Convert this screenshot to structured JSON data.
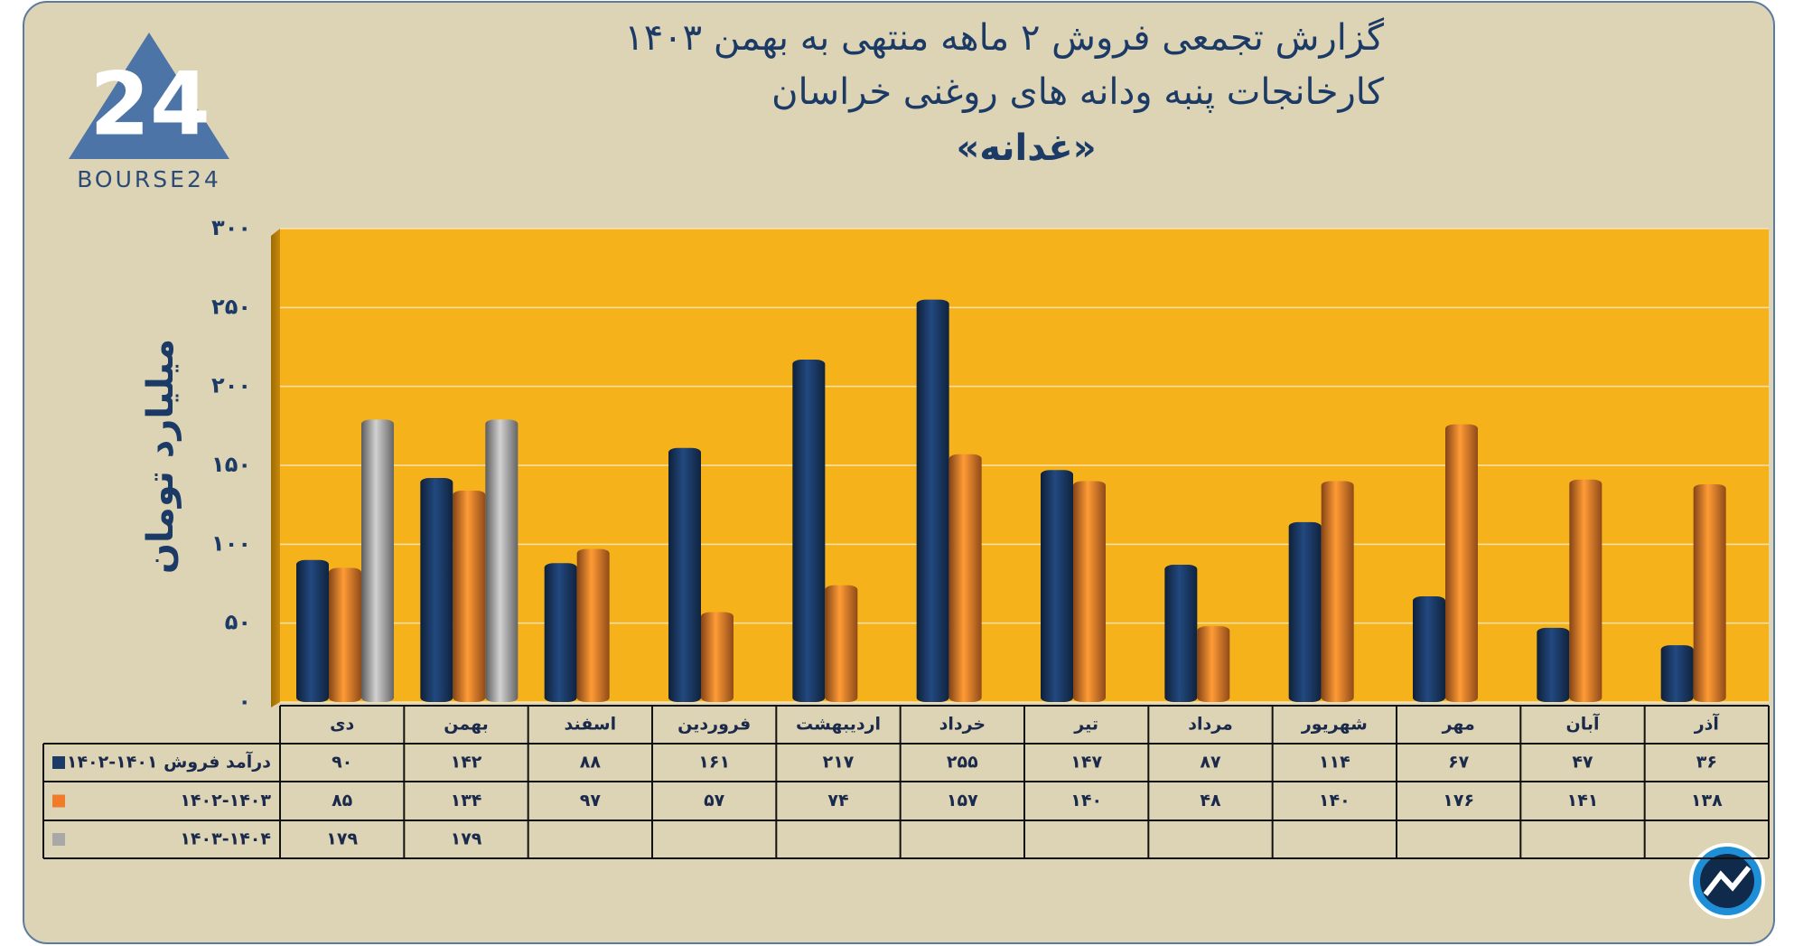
{
  "chart_data": {
    "type": "bar",
    "title": "گزارش تجمعی فروش ۲ ماهه منتهی به بهمن ۱۴۰۳",
    "subtitle": "کارخانجات پنبه ودانه های روغنی خراسان",
    "company": "«غدانه»",
    "logo_text": "BOURSE24",
    "logo_mark": "24",
    "y_label": "میلیارد تومان",
    "categories": [
      "آذر",
      "آبان",
      "مهر",
      "شهریور",
      "مرداد",
      "تیر",
      "خرداد",
      "اردیبهشت",
      "فروردین",
      "اسفند",
      "بهمن",
      "دی"
    ],
    "series": [
      {
        "name": "درآمد فروش ۱۴۰۱-۱۴۰۲",
        "color": "#1b3a66",
        "values": [
          36,
          47,
          67,
          114,
          87,
          147,
          255,
          217,
          161,
          88,
          142,
          90
        ],
        "value_labels": [
          "۳۶",
          "۴۷",
          "۶۷",
          "۱۱۴",
          "۸۷",
          "۱۴۷",
          "۲۵۵",
          "۲۱۷",
          "۱۶۱",
          "۸۸",
          "۱۴۲",
          "۹۰"
        ]
      },
      {
        "name": "۱۴۰۲-۱۴۰۳",
        "color": "#f07c2a",
        "values": [
          138,
          141,
          176,
          140,
          48,
          140,
          157,
          74,
          57,
          97,
          134,
          85
        ],
        "value_labels": [
          "۱۳۸",
          "۱۴۱",
          "۱۷۶",
          "۱۴۰",
          "۴۸",
          "۱۴۰",
          "۱۵۷",
          "۷۴",
          "۵۷",
          "۹۷",
          "۱۳۴",
          "۸۵"
        ]
      },
      {
        "name": "۱۴۰۳-۱۴۰۴",
        "color": "#a8a8a8",
        "values": [
          null,
          null,
          null,
          null,
          null,
          null,
          null,
          null,
          null,
          null,
          179,
          179
        ],
        "value_labels": [
          null,
          null,
          null,
          null,
          null,
          null,
          null,
          null,
          null,
          null,
          "۱۷۹",
          "۱۷۹"
        ]
      }
    ],
    "ylim": [
      0,
      300
    ],
    "yticks": [
      {
        "value": 0,
        "label": "۰"
      },
      {
        "value": 50,
        "label": "۵۰"
      },
      {
        "value": 100,
        "label": "۱۰۰"
      },
      {
        "value": 150,
        "label": "۱۵۰"
      },
      {
        "value": 200,
        "label": "۲۰۰"
      },
      {
        "value": 250,
        "label": "۲۵۰"
      },
      {
        "value": 300,
        "label": "۳۰۰"
      }
    ],
    "grid": true,
    "plot_color": "#f6b21b"
  }
}
